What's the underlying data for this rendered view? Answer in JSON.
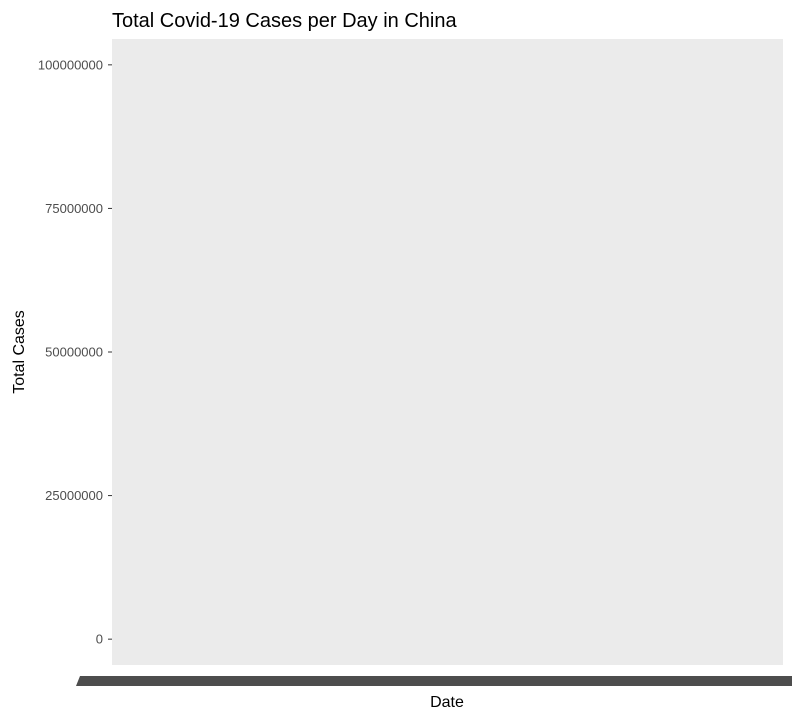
{
  "chart_data": {
    "type": "line",
    "title": "Total Covid-19 Cases per Day in China",
    "xlabel": "Date",
    "ylabel": "Total Cases",
    "ylim": [
      -4500000,
      104500000
    ],
    "y_ticks": [
      0,
      25000000,
      50000000,
      75000000,
      100000000
    ],
    "y_tick_labels": [
      "0",
      "25000000",
      "50000000",
      "75000000",
      "100000000"
    ],
    "x_tick_labels_note": "",
    "series": [],
    "grid": true,
    "legend": "none",
    "panel_background": "#ebebeb",
    "x_axis_label_band_color": "#4d4d4d"
  }
}
